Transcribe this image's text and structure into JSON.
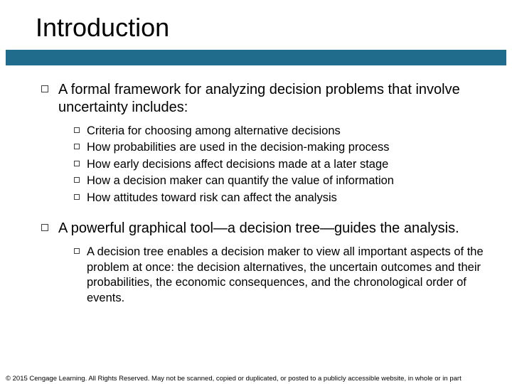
{
  "title": "Introduction",
  "rule_color": "#1f6c8c",
  "background_color": "#ffffff",
  "text_color": "#000000",
  "bullet_border_color": "#404040",
  "title_fontsize": 36,
  "level1_fontsize": 20,
  "level2_fontsize": 16.5,
  "footer_fontsize": 9.5,
  "items": [
    {
      "text": "A formal framework for analyzing decision problems that involve uncertainty includes:",
      "children": [
        {
          "text": "Criteria for choosing among alternative decisions"
        },
        {
          "text": "How probabilities are used in the decision-making process"
        },
        {
          "text": "How early decisions affect decisions made at a later stage"
        },
        {
          "text": "How a decision maker can quantify the value of information"
        },
        {
          "text": "How attitudes toward risk can affect the analysis"
        }
      ]
    },
    {
      "text": "A powerful graphical tool—a decision tree—guides the analysis.",
      "children": [
        {
          "text": "A decision tree enables a decision maker to view all important aspects of the problem at once: the decision alternatives, the uncertain outcomes and their probabilities, the economic consequences, and the chronological order of events."
        }
      ]
    }
  ],
  "footer": "© 2015 Cengage Learning. All Rights Reserved. May not be scanned, copied or duplicated, or posted to a publicly accessible website, in whole or in part"
}
